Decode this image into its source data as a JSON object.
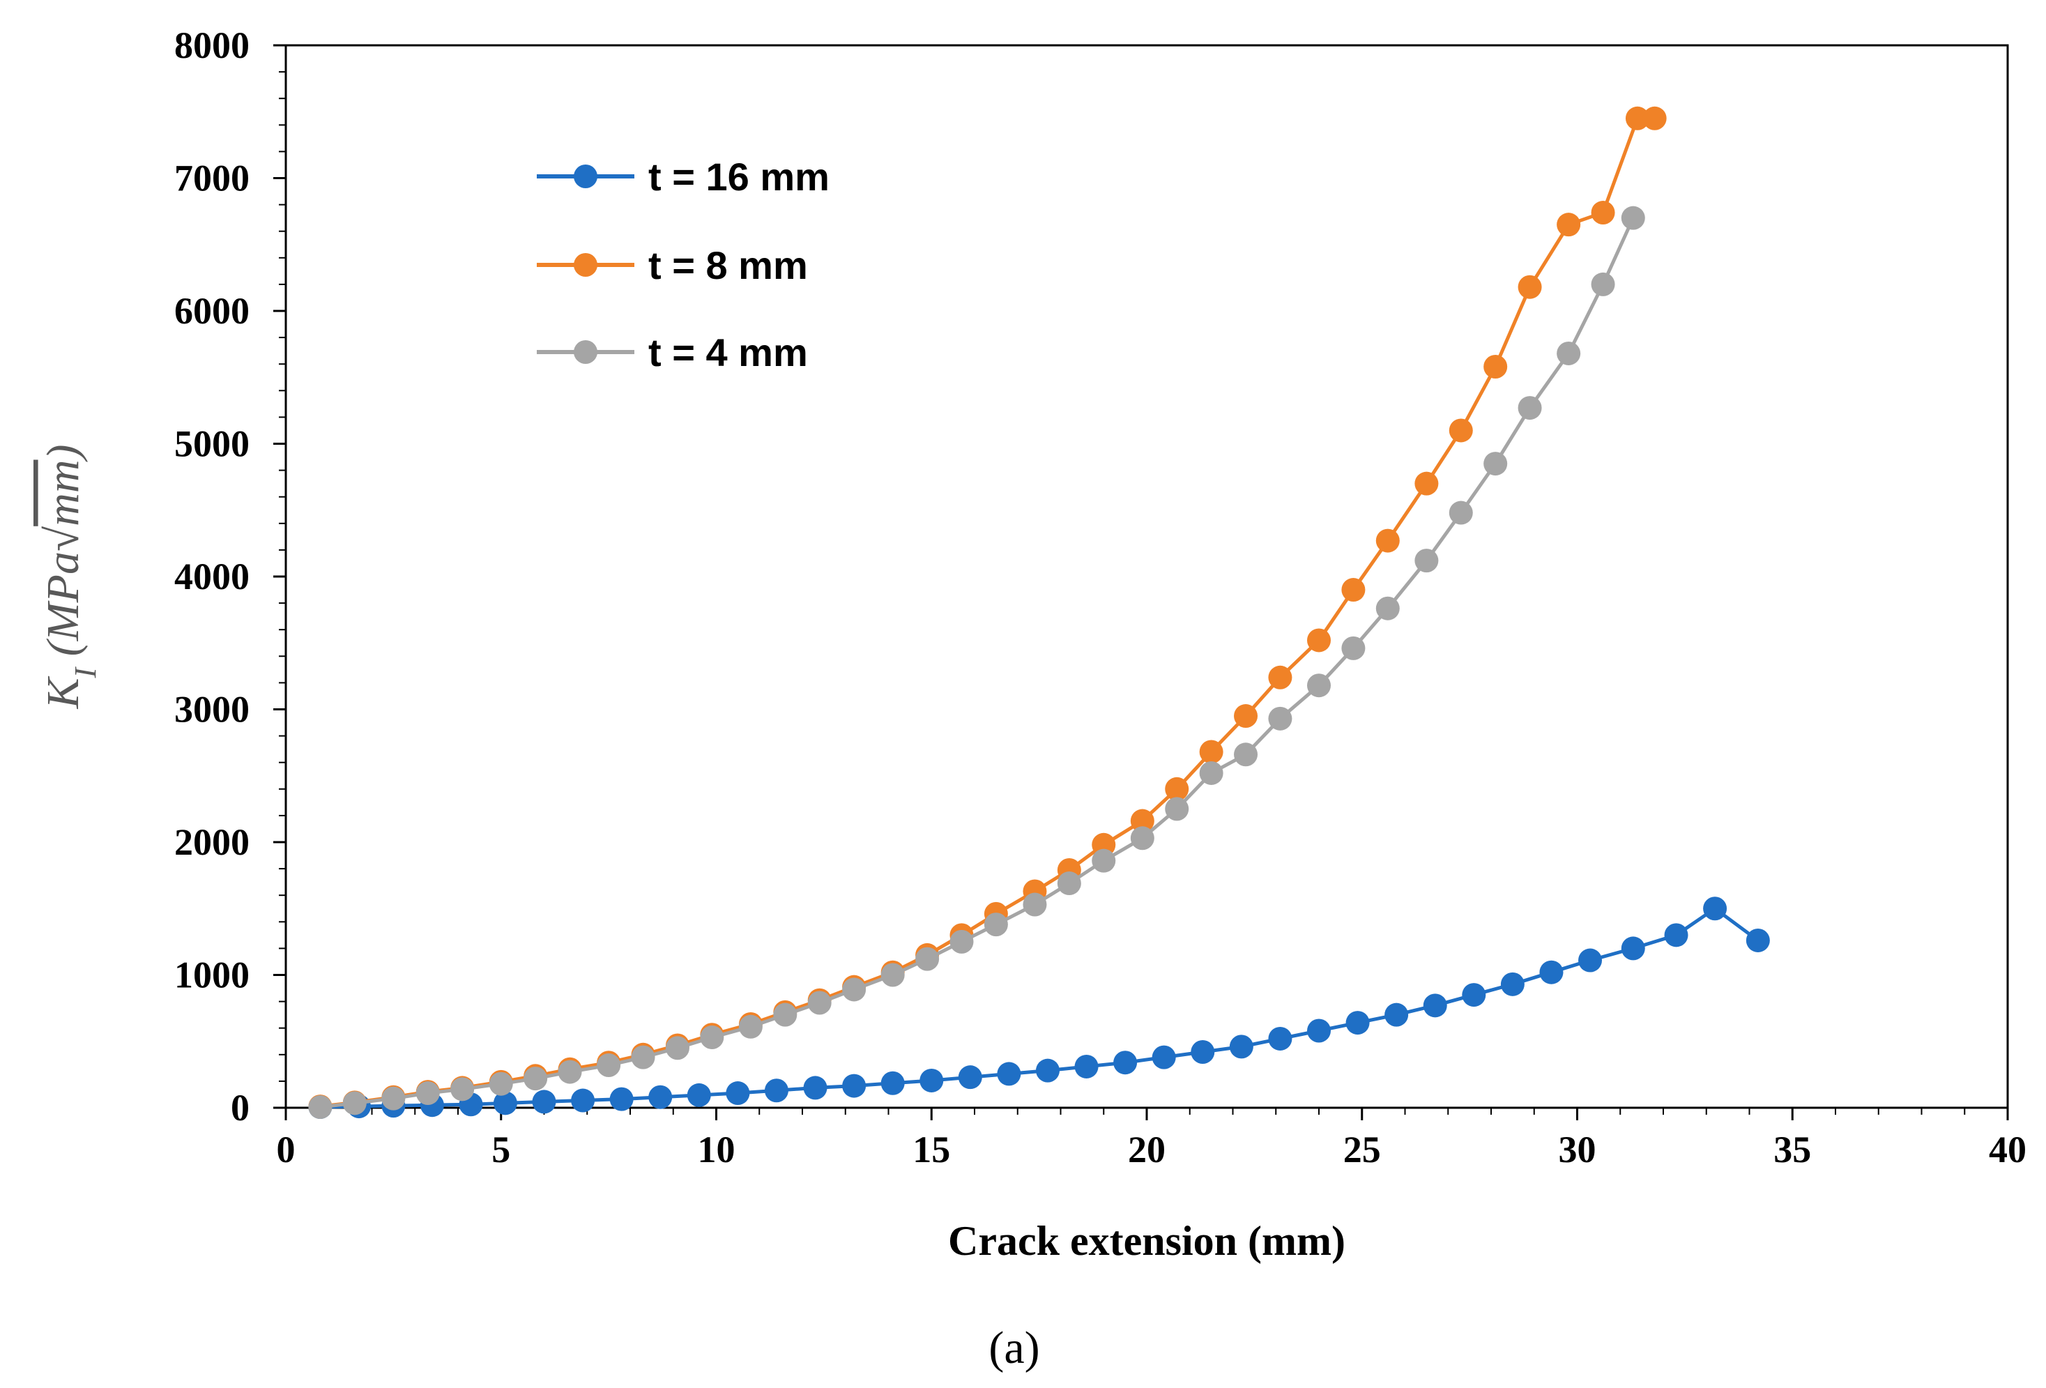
{
  "chart_data": {
    "type": "line",
    "title": "",
    "xlabel": "Crack extension (mm)",
    "ylabel": "K_I (MPa√mm)",
    "ylabel_parts": {
      "main": "K",
      "sub": "I",
      "unit_open": " (MPa",
      "unit_sqrt": "mm",
      "unit_close": ")"
    },
    "xlim": [
      0,
      40
    ],
    "ylim": [
      0,
      8000
    ],
    "xticks": [
      0,
      5,
      10,
      15,
      20,
      25,
      30,
      35,
      40
    ],
    "yticks": [
      0,
      1000,
      2000,
      3000,
      4000,
      5000,
      6000,
      7000,
      8000
    ],
    "grid": false,
    "legend_position": "top-left",
    "caption": "(a)",
    "series": [
      {
        "name": "t = 16 mm",
        "color": "#1F6FC5",
        "x": [
          0.8,
          1.7,
          2.5,
          3.4,
          4.3,
          5.1,
          6.0,
          6.9,
          7.8,
          8.7,
          9.6,
          10.5,
          11.4,
          12.3,
          13.2,
          14.1,
          15.0,
          15.9,
          16.8,
          17.7,
          18.6,
          19.5,
          20.4,
          21.3,
          22.2,
          23.1,
          24.0,
          24.9,
          25.8,
          26.7,
          27.6,
          28.5,
          29.4,
          30.3,
          31.3,
          32.3,
          33.2,
          34.2
        ],
        "y": [
          5,
          10,
          15,
          20,
          25,
          35,
          45,
          55,
          65,
          80,
          95,
          110,
          130,
          150,
          165,
          185,
          205,
          230,
          255,
          280,
          310,
          340,
          380,
          420,
          460,
          520,
          580,
          640,
          700,
          770,
          850,
          930,
          1020,
          1110,
          1200,
          1300,
          1500,
          1260
        ]
      },
      {
        "name": "t = 8 mm",
        "color": "#F08227",
        "x": [
          0.8,
          1.6,
          2.5,
          3.3,
          4.1,
          5.0,
          5.8,
          6.6,
          7.5,
          8.3,
          9.1,
          9.9,
          10.8,
          11.6,
          12.4,
          13.2,
          14.1,
          14.9,
          15.7,
          16.5,
          17.4,
          18.2,
          19.0,
          19.9,
          20.7,
          21.5,
          22.3,
          23.1,
          24.0,
          24.8,
          25.6,
          26.5,
          27.3,
          28.1,
          28.9,
          29.8,
          30.6,
          31.4,
          31.8
        ],
        "y": [
          10,
          40,
          80,
          120,
          150,
          195,
          240,
          290,
          340,
          400,
          470,
          550,
          630,
          720,
          810,
          910,
          1020,
          1150,
          1300,
          1460,
          1630,
          1790,
          1980,
          2160,
          2400,
          2680,
          2950,
          3240,
          3520,
          3900,
          4270,
          4700,
          5100,
          5580,
          6180,
          6650,
          6740,
          7450,
          7450
        ]
      },
      {
        "name": "t = 4 mm",
        "color": "#A5A5A5",
        "x": [
          0.8,
          1.6,
          2.5,
          3.3,
          4.1,
          5.0,
          5.8,
          6.6,
          7.5,
          8.3,
          9.1,
          9.9,
          10.8,
          11.6,
          12.4,
          13.2,
          14.1,
          14.9,
          15.7,
          16.5,
          17.4,
          18.2,
          19.0,
          19.9,
          20.7,
          21.5,
          22.3,
          23.1,
          24.0,
          24.8,
          25.6,
          26.5,
          27.3,
          28.1,
          28.9,
          29.8,
          30.6,
          31.3
        ],
        "y": [
          5,
          35,
          70,
          110,
          140,
          180,
          220,
          270,
          320,
          380,
          450,
          530,
          610,
          700,
          790,
          890,
          1000,
          1120,
          1250,
          1380,
          1530,
          1690,
          1860,
          2030,
          2250,
          2520,
          2660,
          2930,
          3180,
          3460,
          3760,
          4120,
          4480,
          4850,
          5270,
          5680,
          6200,
          6700
        ]
      }
    ]
  }
}
